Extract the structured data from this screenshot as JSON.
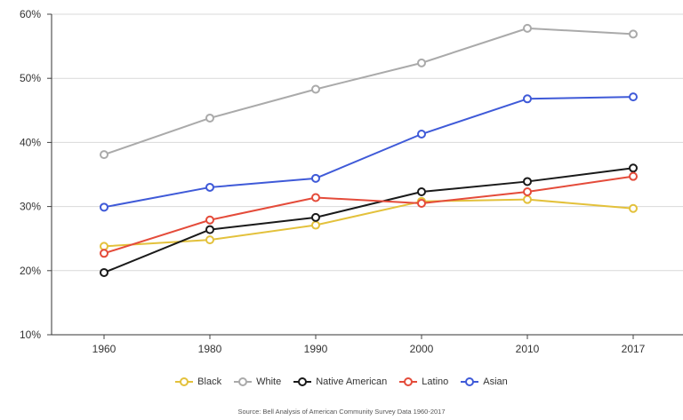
{
  "chart_data": {
    "type": "line",
    "categories": [
      "1960",
      "1980",
      "1990",
      "2000",
      "2010",
      "2017"
    ],
    "series": [
      {
        "name": "Black",
        "color": "#e3c13b",
        "values": [
          23.8,
          24.8,
          27.1,
          30.8,
          31.1,
          29.7
        ]
      },
      {
        "name": "White",
        "color": "#aaaaaa",
        "values": [
          38.1,
          43.8,
          48.3,
          52.4,
          57.8,
          56.9
        ]
      },
      {
        "name": "Native American",
        "color": "#1a1a1a",
        "values": [
          19.7,
          26.4,
          28.3,
          32.3,
          33.9,
          36.0
        ]
      },
      {
        "name": "Latino",
        "color": "#e44b3a",
        "values": [
          22.7,
          27.9,
          31.4,
          30.5,
          32.3,
          34.7
        ]
      },
      {
        "name": "Asian",
        "color": "#3f5ad8",
        "values": [
          29.9,
          33.0,
          34.4,
          41.3,
          46.8,
          47.1
        ]
      }
    ],
    "y_ticks": [
      "10%",
      "20%",
      "30%",
      "40%",
      "50%",
      "60%"
    ],
    "ylim": [
      10,
      60
    ],
    "grid": true,
    "legend_position": "bottom",
    "source": "Source: Bell Analysis of American Community Survey Data 1960-2017"
  }
}
